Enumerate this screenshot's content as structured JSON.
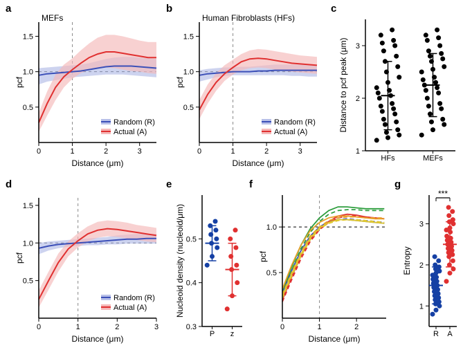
{
  "global": {
    "colors": {
      "random_line": "#3b4fb8",
      "random_fill": "#b8c0e8",
      "actual_line": "#e03030",
      "actual_fill": "#f5b8b8",
      "axis": "#000000",
      "dash": "#888888",
      "bg": "#ffffff",
      "scatter_blue": "#1540a4",
      "scatter_red": "#e03030",
      "scatter_black": "#000000"
    },
    "font_sizes": {
      "panel_label": 15,
      "axis_label": 12,
      "tick": 11,
      "legend": 11
    }
  },
  "panel_a": {
    "label": "a",
    "title": "MEFs",
    "xlabel": "Distance (μm)",
    "ylabel": "pcf",
    "xlim": [
      0,
      3.5
    ],
    "xticks": [
      0,
      1,
      2,
      3
    ],
    "ylim": [
      0,
      1.7
    ],
    "yticks": [
      0.5,
      1.0,
      1.5
    ],
    "legend": {
      "random": "Random (R)",
      "actual": "Actual (A)"
    },
    "random": {
      "x": [
        0,
        0.25,
        0.5,
        0.75,
        1,
        1.25,
        1.5,
        1.75,
        2,
        2.25,
        2.5,
        2.75,
        3,
        3.25,
        3.5
      ],
      "y": [
        0.95,
        0.97,
        0.98,
        0.99,
        1.0,
        1.01,
        1.03,
        1.05,
        1.07,
        1.08,
        1.08,
        1.08,
        1.07,
        1.06,
        1.05
      ],
      "lo": [
        0.82,
        0.86,
        0.88,
        0.9,
        0.92,
        0.93,
        0.94,
        0.95,
        0.96,
        0.96,
        0.96,
        0.95,
        0.94,
        0.93,
        0.92
      ],
      "hi": [
        1.05,
        1.06,
        1.07,
        1.08,
        1.09,
        1.1,
        1.12,
        1.15,
        1.18,
        1.2,
        1.21,
        1.21,
        1.2,
        1.19,
        1.18
      ]
    },
    "actual": {
      "x": [
        0,
        0.25,
        0.5,
        0.75,
        1,
        1.25,
        1.5,
        1.75,
        2,
        2.25,
        2.5,
        2.75,
        3,
        3.25,
        3.5
      ],
      "y": [
        0.28,
        0.55,
        0.78,
        0.93,
        1.03,
        1.12,
        1.2,
        1.25,
        1.28,
        1.28,
        1.26,
        1.24,
        1.22,
        1.2,
        1.2
      ],
      "lo": [
        0.15,
        0.38,
        0.6,
        0.78,
        0.9,
        0.98,
        1.03,
        1.05,
        1.06,
        1.05,
        1.03,
        1.01,
        1.0,
        0.98,
        0.97
      ],
      "hi": [
        0.42,
        0.72,
        0.96,
        1.1,
        1.19,
        1.3,
        1.4,
        1.48,
        1.52,
        1.52,
        1.5,
        1.47,
        1.44,
        1.42,
        1.42
      ]
    }
  },
  "panel_b": {
    "label": "b",
    "title": "Human Fibroblasts (HFs)",
    "xlabel": "Distance (μm)",
    "ylabel": "pcf",
    "xlim": [
      0,
      3.5
    ],
    "xticks": [
      0,
      1,
      2,
      3
    ],
    "ylim": [
      0,
      1.7
    ],
    "yticks": [
      0.5,
      1.0,
      1.5
    ],
    "legend": {
      "random": "Random (R)",
      "actual": "Actual (A)"
    },
    "random": {
      "x": [
        0,
        0.25,
        0.5,
        0.75,
        1,
        1.25,
        1.5,
        1.75,
        2,
        2.25,
        2.5,
        2.75,
        3,
        3.25,
        3.5
      ],
      "y": [
        0.95,
        0.97,
        0.98,
        0.99,
        1.0,
        1.0,
        1.0,
        1.01,
        1.01,
        1.02,
        1.02,
        1.02,
        1.02,
        1.02,
        1.02
      ],
      "lo": [
        0.86,
        0.89,
        0.92,
        0.94,
        0.95,
        0.95,
        0.95,
        0.95,
        0.95,
        0.95,
        0.95,
        0.94,
        0.94,
        0.93,
        0.93
      ],
      "hi": [
        1.02,
        1.04,
        1.05,
        1.06,
        1.06,
        1.07,
        1.07,
        1.08,
        1.09,
        1.1,
        1.1,
        1.1,
        1.1,
        1.1,
        1.1
      ]
    },
    "actual": {
      "x": [
        0,
        0.25,
        0.5,
        0.75,
        1,
        1.25,
        1.5,
        1.75,
        2,
        2.25,
        2.5,
        2.75,
        3,
        3.25,
        3.5
      ],
      "y": [
        0.46,
        0.68,
        0.85,
        0.97,
        1.06,
        1.14,
        1.18,
        1.19,
        1.18,
        1.16,
        1.14,
        1.12,
        1.11,
        1.1,
        1.09
      ],
      "lo": [
        0.33,
        0.55,
        0.73,
        0.87,
        0.96,
        1.02,
        1.05,
        1.06,
        1.05,
        1.03,
        1.01,
        1.0,
        0.99,
        0.98,
        0.97
      ],
      "hi": [
        0.6,
        0.82,
        0.98,
        1.09,
        1.17,
        1.25,
        1.3,
        1.32,
        1.31,
        1.29,
        1.27,
        1.25,
        1.23,
        1.22,
        1.21
      ]
    }
  },
  "panel_c": {
    "label": "c",
    "ylabel": "Distance to pcf peak (μm)",
    "ylim": [
      1.0,
      3.5
    ],
    "yticks": [
      1,
      2,
      3
    ],
    "groups": [
      "HFs",
      "MEFs"
    ],
    "mean": [
      2.05,
      2.25
    ],
    "sd": [
      0.65,
      0.6
    ],
    "points": {
      "HFs": [
        1.2,
        1.25,
        1.3,
        1.35,
        1.4,
        1.5,
        1.55,
        1.6,
        1.7,
        1.75,
        1.8,
        1.85,
        1.9,
        2.0,
        2.05,
        2.1,
        2.15,
        2.2,
        2.3,
        2.4,
        2.5,
        2.6,
        2.7,
        2.8,
        2.9,
        3.0,
        3.05,
        3.1,
        3.2,
        3.3
      ],
      "MEFs": [
        1.3,
        1.4,
        1.5,
        1.55,
        1.6,
        1.7,
        1.8,
        1.85,
        1.9,
        2.0,
        2.1,
        2.15,
        2.2,
        2.25,
        2.3,
        2.35,
        2.4,
        2.5,
        2.55,
        2.6,
        2.7,
        2.75,
        2.8,
        2.85,
        2.9,
        3.0,
        3.1,
        3.15,
        3.2,
        3.3
      ]
    },
    "point_color": "#000000"
  },
  "panel_d": {
    "label": "d",
    "xlabel": "Distance (μm)",
    "ylabel": "pcf",
    "xlim": [
      0,
      3.0
    ],
    "xticks": [
      0,
      1,
      2,
      3
    ],
    "ylim": [
      0,
      1.6
    ],
    "yticks": [
      0.5,
      1.0,
      1.5
    ],
    "legend": {
      "random": "Random (R)",
      "actual": "Actual (A)"
    },
    "random": {
      "x": [
        0,
        0.25,
        0.5,
        0.75,
        1,
        1.25,
        1.5,
        1.75,
        2,
        2.25,
        2.5,
        2.75,
        3
      ],
      "y": [
        0.93,
        0.96,
        0.98,
        0.99,
        1.0,
        1.01,
        1.02,
        1.03,
        1.04,
        1.05,
        1.05,
        1.06,
        1.06
      ],
      "lo": [
        0.85,
        0.9,
        0.93,
        0.95,
        0.96,
        0.97,
        0.97,
        0.98,
        0.98,
        0.99,
        0.99,
        0.99,
        0.99
      ],
      "hi": [
        1.0,
        1.02,
        1.03,
        1.04,
        1.05,
        1.06,
        1.07,
        1.08,
        1.1,
        1.11,
        1.12,
        1.12,
        1.12
      ]
    },
    "actual": {
      "x": [
        0,
        0.25,
        0.5,
        0.75,
        1,
        1.25,
        1.5,
        1.75,
        2,
        2.25,
        2.5,
        2.75,
        3
      ],
      "y": [
        0.25,
        0.5,
        0.74,
        0.92,
        1.03,
        1.12,
        1.17,
        1.19,
        1.18,
        1.16,
        1.14,
        1.12,
        1.1
      ],
      "lo": [
        0.14,
        0.38,
        0.62,
        0.82,
        0.94,
        1.02,
        1.07,
        1.09,
        1.08,
        1.06,
        1.04,
        1.02,
        1.01
      ],
      "hi": [
        0.37,
        0.62,
        0.86,
        1.02,
        1.13,
        1.22,
        1.28,
        1.3,
        1.29,
        1.27,
        1.24,
        1.22,
        1.2
      ]
    }
  },
  "panel_e": {
    "label": "e",
    "ylabel": "Nucleoid density (nucleoid/μm)",
    "ylim": [
      0.3,
      0.6
    ],
    "yticks": [
      0.3,
      0.4,
      0.5
    ],
    "groups": [
      "P",
      "z"
    ],
    "mean": [
      0.49,
      0.43
    ],
    "sd": [
      0.04,
      0.06
    ],
    "points": {
      "P": [
        0.44,
        0.46,
        0.48,
        0.49,
        0.5,
        0.51,
        0.52,
        0.53,
        0.54
      ],
      "z": [
        0.34,
        0.37,
        0.4,
        0.43,
        0.44,
        0.46,
        0.48,
        0.5,
        0.52
      ]
    },
    "colors": {
      "P": "#1540a4",
      "z": "#e03030"
    }
  },
  "panel_f": {
    "label": "f",
    "xlabel": "Distance (μm)",
    "ylabel": "pcf",
    "xlim": [
      0,
      2.8
    ],
    "xticks": [
      0,
      1,
      2
    ],
    "ylim": [
      0,
      1.35
    ],
    "yticks": [
      0.5,
      1.0
    ],
    "series": [
      {
        "color": "#3b4fb8",
        "dash": false,
        "y": [
          0.28,
          0.52,
          0.74,
          0.9,
          1.0,
          1.06,
          1.08,
          1.08,
          1.07,
          1.06,
          1.05,
          1.04
        ]
      },
      {
        "color": "#3b4fb8",
        "dash": true,
        "y": [
          0.24,
          0.48,
          0.7,
          0.88,
          0.99,
          1.05,
          1.08,
          1.09,
          1.08,
          1.07,
          1.06,
          1.05
        ]
      },
      {
        "color": "#e03030",
        "dash": false,
        "y": [
          0.2,
          0.45,
          0.68,
          0.86,
          0.98,
          1.06,
          1.12,
          1.14,
          1.13,
          1.11,
          1.1,
          1.09
        ]
      },
      {
        "color": "#e03030",
        "dash": true,
        "y": [
          0.18,
          0.42,
          0.65,
          0.84,
          0.97,
          1.05,
          1.1,
          1.12,
          1.12,
          1.11,
          1.1,
          1.09
        ]
      },
      {
        "color": "#2e9e3e",
        "dash": false,
        "y": [
          0.3,
          0.56,
          0.8,
          0.98,
          1.1,
          1.18,
          1.22,
          1.22,
          1.21,
          1.2,
          1.2,
          1.2
        ]
      },
      {
        "color": "#2e9e3e",
        "dash": true,
        "y": [
          0.26,
          0.52,
          0.76,
          0.94,
          1.06,
          1.14,
          1.18,
          1.19,
          1.19,
          1.18,
          1.18,
          1.18
        ]
      },
      {
        "color": "#e8a029",
        "dash": false,
        "y": [
          0.32,
          0.58,
          0.8,
          0.96,
          1.05,
          1.1,
          1.12,
          1.12,
          1.11,
          1.1,
          1.09,
          1.09
        ]
      },
      {
        "color": "#e8a029",
        "dash": true,
        "y": [
          0.26,
          0.5,
          0.72,
          0.9,
          1.0,
          1.07,
          1.1,
          1.11,
          1.11,
          1.1,
          1.1,
          1.1
        ]
      },
      {
        "color": "#e0c830",
        "dash": false,
        "y": [
          0.24,
          0.48,
          0.7,
          0.88,
          0.99,
          1.05,
          1.08,
          1.08,
          1.07,
          1.06,
          1.05,
          1.04
        ]
      },
      {
        "color": "#e0c830",
        "dash": true,
        "y": [
          0.22,
          0.46,
          0.68,
          0.86,
          0.98,
          1.04,
          1.07,
          1.08,
          1.08,
          1.07,
          1.06,
          1.05
        ]
      }
    ],
    "x": [
      0,
      0.25,
      0.5,
      0.75,
      1,
      1.25,
      1.5,
      1.75,
      2,
      2.25,
      2.5,
      2.75
    ]
  },
  "panel_g": {
    "label": "g",
    "ylabel": "Entropy",
    "ylim": [
      0.5,
      3.7
    ],
    "yticks": [
      1,
      2,
      3
    ],
    "groups": [
      "R",
      "A"
    ],
    "significance": "***",
    "mean": [
      1.5,
      2.5
    ],
    "sd": [
      0.45,
      0.55
    ],
    "points": {
      "R": [
        0.8,
        0.9,
        1.0,
        1.05,
        1.1,
        1.15,
        1.2,
        1.25,
        1.3,
        1.35,
        1.4,
        1.45,
        1.5,
        1.55,
        1.6,
        1.65,
        1.7,
        1.75,
        1.8,
        1.85,
        1.9,
        1.95,
        2.0,
        2.1,
        2.2
      ],
      "A": [
        1.6,
        1.8,
        1.9,
        2.0,
        2.1,
        2.2,
        2.25,
        2.3,
        2.35,
        2.4,
        2.45,
        2.5,
        2.55,
        2.6,
        2.65,
        2.7,
        2.8,
        2.85,
        2.9,
        3.0,
        3.05,
        3.1,
        3.2,
        3.3,
        3.4
      ]
    },
    "colors": {
      "R": "#1540a4",
      "A": "#e03030"
    }
  }
}
